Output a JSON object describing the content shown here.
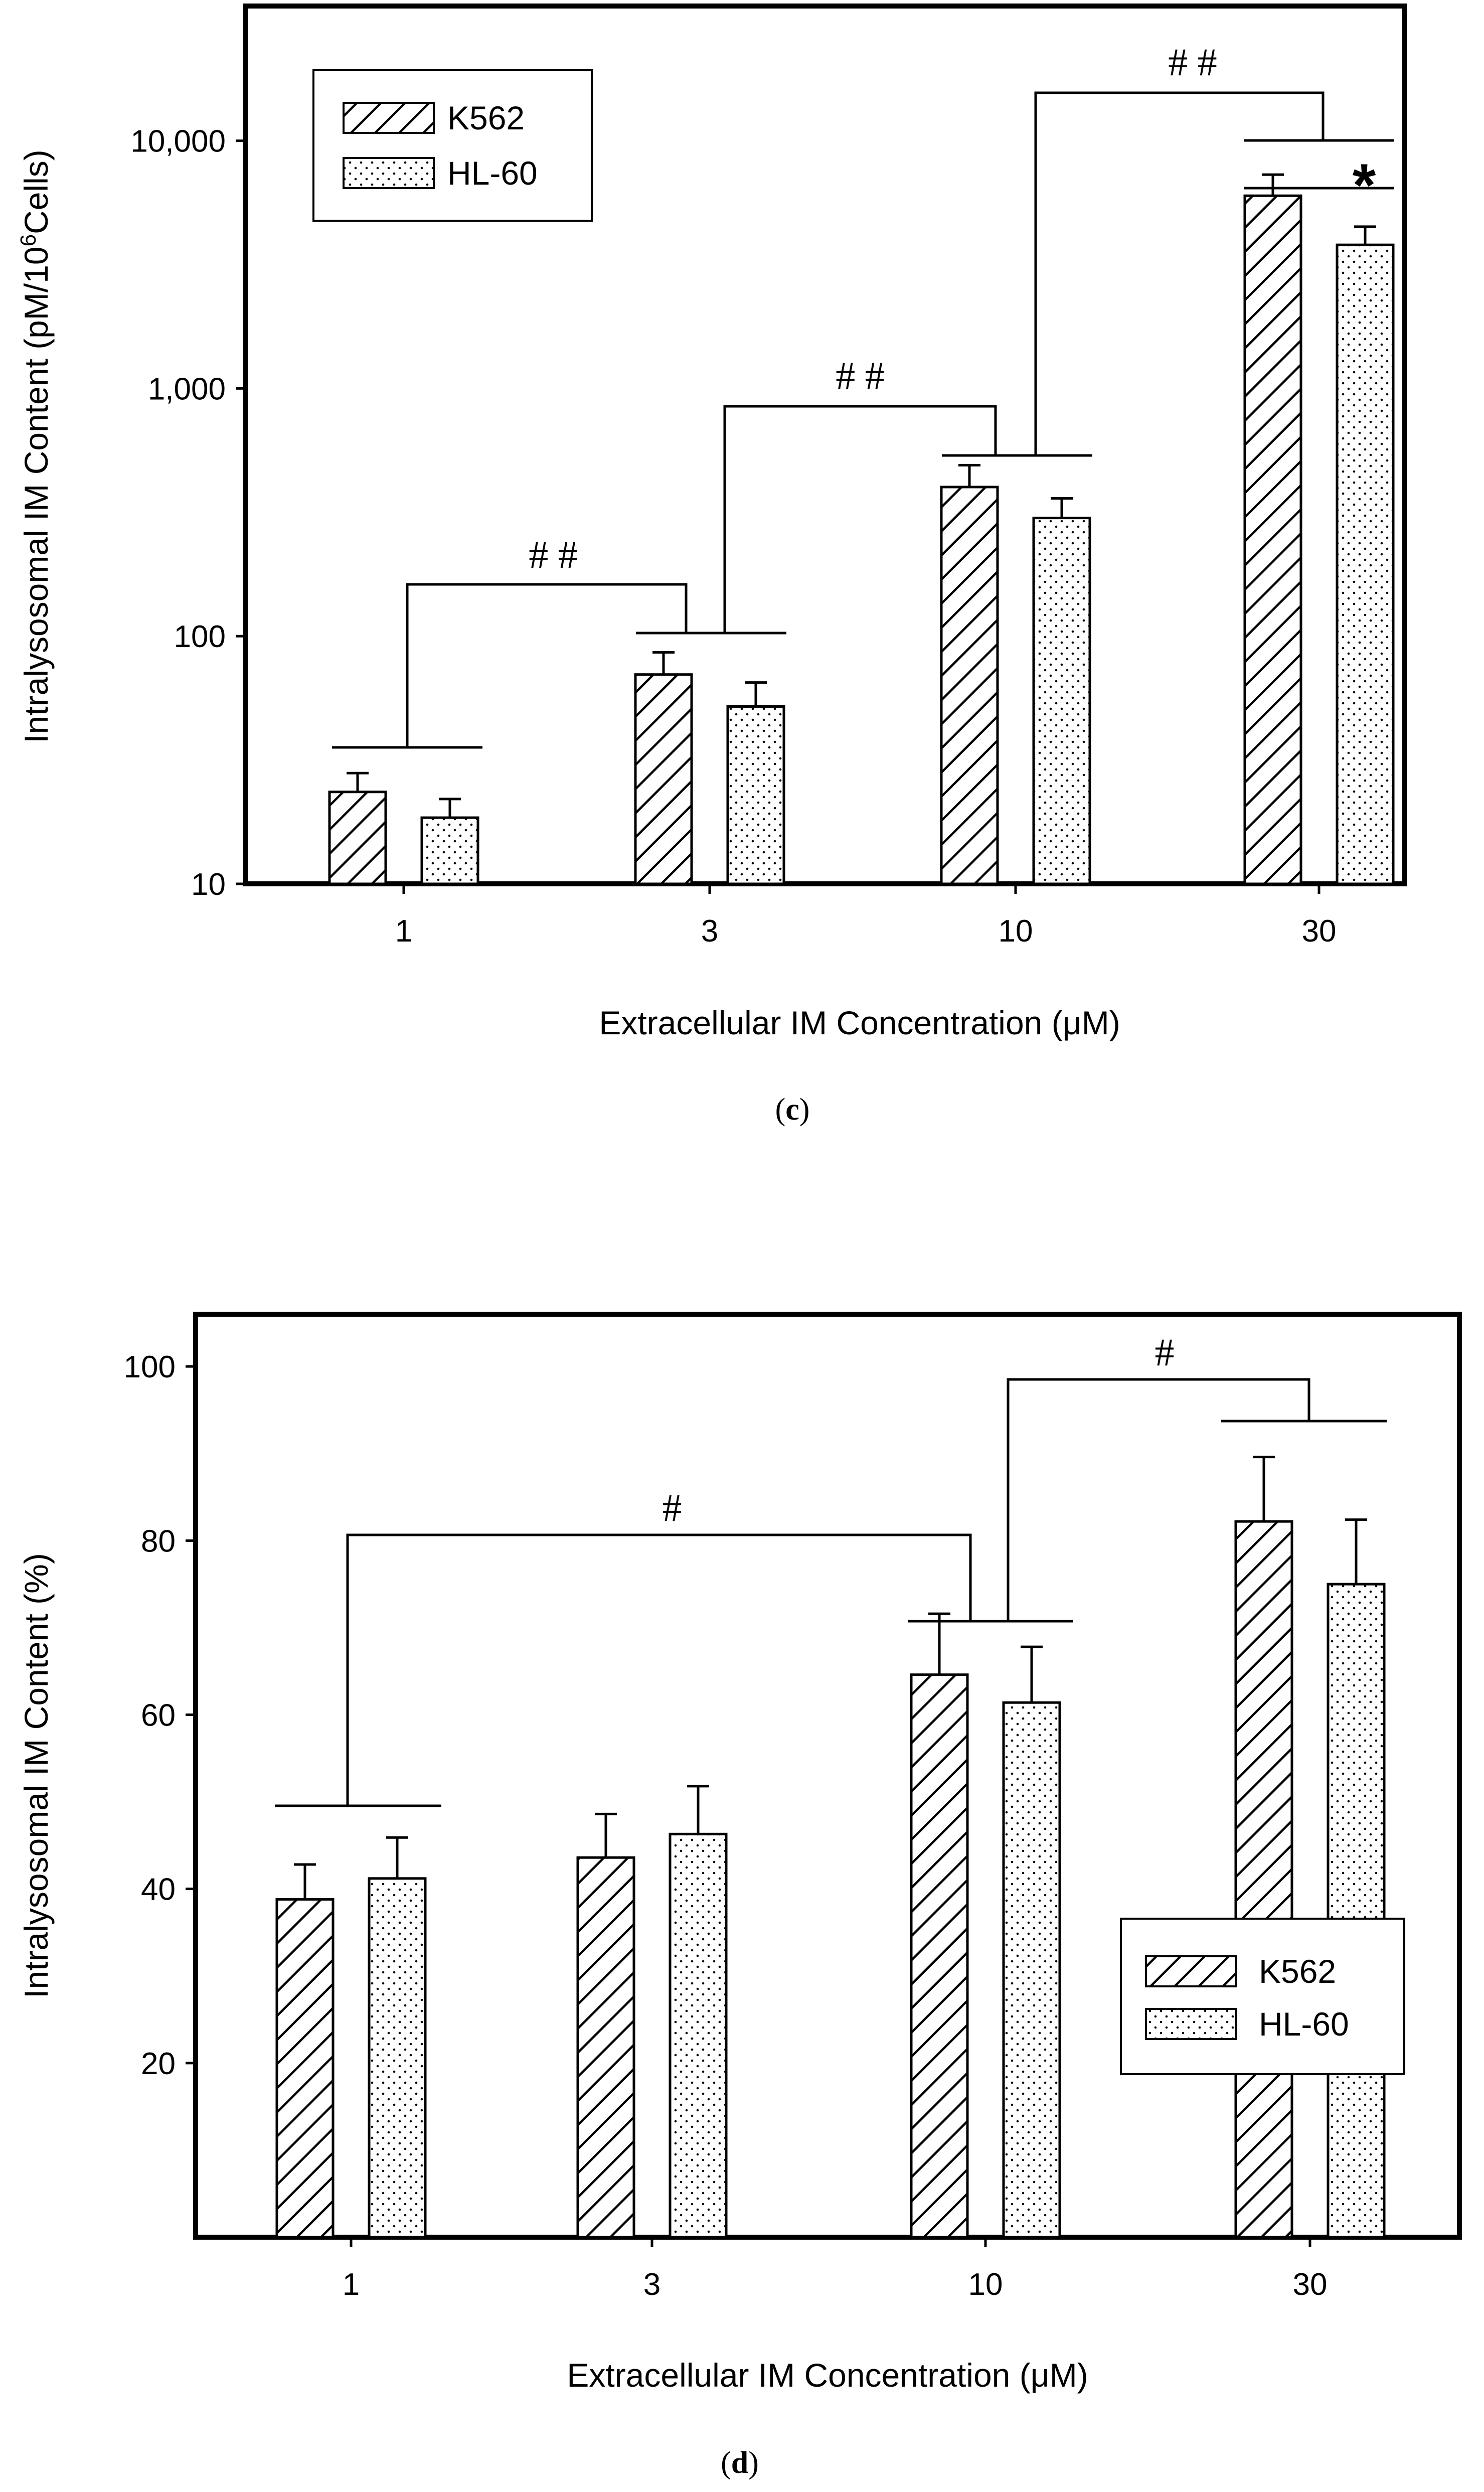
{
  "chart_data": [
    {
      "type": "bar",
      "panel_label": "c",
      "scale": "log",
      "categories": [
        "1",
        "3",
        "10",
        "30"
      ],
      "series": [
        {
          "name": "K562",
          "pattern": "hatch",
          "values": [
            23.5,
            70,
            400,
            6000
          ],
          "errors": [
            28,
            86,
            490,
            7300
          ]
        },
        {
          "name": "HL-60",
          "pattern": "dots",
          "values": [
            18.5,
            52,
            300,
            3800
          ],
          "errors": [
            22,
            65,
            360,
            4500
          ]
        }
      ],
      "yticks": [
        10,
        100,
        1000,
        10000
      ],
      "ytick_labels": [
        "10",
        "100",
        "1,000",
        "10,000"
      ],
      "ylim": [
        10,
        35000
      ],
      "xlabel": "Extracellular IM Concentration (μM)",
      "ylabel_main": "Intralysosomal IM Content (pM/10",
      "ylabel_sup": "6",
      "ylabel_tail": "Cells)",
      "legend_position": "top-left",
      "annotations": [
        {
          "text": "# #",
          "from": "1",
          "to": "3"
        },
        {
          "text": "# #",
          "from": "3",
          "to": "10"
        },
        {
          "text": "# #",
          "from": "10",
          "to": "30"
        },
        {
          "text": "*",
          "within": "30"
        }
      ]
    },
    {
      "type": "bar",
      "panel_label": "d",
      "scale": "linear",
      "categories": [
        "1",
        "3",
        "10",
        "30"
      ],
      "series": [
        {
          "name": "K562",
          "pattern": "hatch",
          "values": [
            38.8,
            43.6,
            64.6,
            82.2
          ],
          "errors": [
            42.8,
            48.6,
            71.6,
            89.6
          ]
        },
        {
          "name": "HL-60",
          "pattern": "dots",
          "values": [
            41.2,
            46.3,
            61.4,
            75.0
          ],
          "errors": [
            45.9,
            51.8,
            67.8,
            82.4
          ]
        }
      ],
      "yticks": [
        20,
        40,
        60,
        80,
        100
      ],
      "ytick_labels": [
        "20",
        "40",
        "60",
        "80",
        "100"
      ],
      "ylim": [
        0,
        106
      ],
      "xlabel": "Extracellular IM Concentration (μM)",
      "ylabel": "Intralysosomal IM Content (%)",
      "legend_position": "bottom-right",
      "annotations": [
        {
          "text": "#",
          "from": "1",
          "to": "10"
        },
        {
          "text": "#",
          "from": "10",
          "to": "30"
        }
      ]
    }
  ]
}
